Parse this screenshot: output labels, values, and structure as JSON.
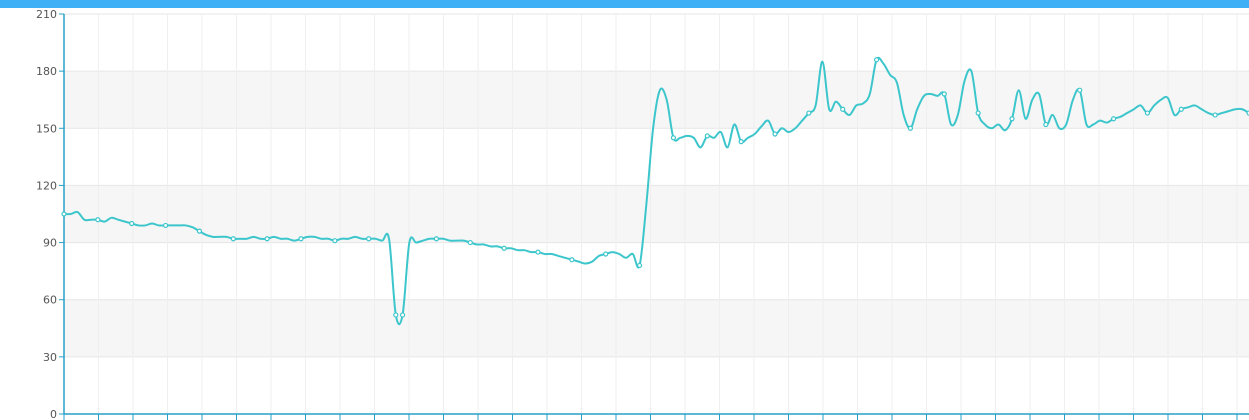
{
  "colors": {
    "top_bar": "#3fb0f5",
    "line": "#3cc6cc",
    "axis": "#2a9fc9",
    "band": "#f6f6f6",
    "grid": "#e6e6e6"
  },
  "chart_data": {
    "type": "line",
    "title": "",
    "xlabel": "",
    "ylabel": "",
    "ylim": [
      0,
      210
    ],
    "yticks": [
      0,
      30,
      60,
      90,
      120,
      150,
      180,
      210
    ],
    "ytick_labels": [
      "0",
      "30",
      "60",
      "90",
      "120",
      "150",
      "180",
      "210"
    ],
    "grid": true,
    "legend": "none",
    "x": [
      0,
      1,
      2,
      3,
      4,
      5,
      6,
      7,
      8,
      9,
      10,
      11,
      12,
      13,
      14,
      15,
      16,
      17,
      18,
      19,
      20,
      21,
      22,
      23,
      24,
      25,
      26,
      27,
      28,
      29,
      30,
      31,
      32,
      33,
      34,
      35,
      36,
      37,
      38,
      39,
      40,
      41,
      42,
      43,
      44,
      45,
      46,
      47,
      48,
      49,
      50,
      51,
      52,
      53,
      54,
      55,
      56,
      57,
      58,
      59,
      60,
      61,
      62,
      63,
      64,
      65,
      66,
      67,
      68,
      69,
      70,
      71,
      72,
      73,
      74,
      75,
      76,
      77,
      78,
      79,
      80,
      81,
      82,
      83,
      84,
      85,
      86,
      87,
      88,
      89,
      90,
      91,
      92,
      93,
      94,
      95,
      96,
      97,
      98,
      99,
      100,
      101,
      102,
      103,
      104,
      105,
      106,
      107,
      108,
      109,
      110,
      111,
      112,
      113,
      114,
      115,
      116,
      117,
      118,
      119,
      120,
      121,
      122,
      123,
      124,
      125,
      126,
      127,
      128,
      129,
      130,
      131,
      132,
      133,
      134,
      135,
      136,
      137,
      138,
      139,
      140,
      141,
      142,
      143,
      144,
      145,
      146,
      147,
      148,
      149,
      150,
      151,
      152,
      153,
      154,
      155,
      156,
      157,
      158,
      159,
      160,
      161,
      162,
      163,
      164,
      165,
      166,
      167,
      168,
      169,
      170,
      171,
      172,
      173,
      174,
      175
    ],
    "values": [
      105,
      105,
      106,
      102,
      102,
      102,
      101,
      103,
      102,
      101,
      100,
      99,
      99,
      100,
      99,
      99,
      99,
      99,
      99,
      98,
      96,
      94,
      93,
      93,
      93,
      92,
      92,
      92,
      93,
      92,
      92,
      93,
      92,
      92,
      91,
      92,
      93,
      93,
      92,
      92,
      91,
      92,
      92,
      93,
      92,
      92,
      92,
      91,
      92,
      52,
      52,
      90,
      90,
      91,
      92,
      92,
      92,
      91,
      91,
      91,
      90,
      89,
      89,
      88,
      88,
      87,
      87,
      86,
      86,
      85,
      85,
      84,
      84,
      83,
      82,
      81,
      80,
      79,
      80,
      83,
      84,
      85,
      84,
      82,
      84,
      78,
      110,
      150,
      170,
      165,
      145,
      145,
      146,
      145,
      140,
      146,
      145,
      148,
      140,
      152,
      143,
      145,
      147,
      151,
      154,
      147,
      150,
      148,
      150,
      154,
      158,
      162,
      185,
      160,
      164,
      160,
      157,
      162,
      163,
      168,
      186,
      184,
      178,
      174,
      157,
      150,
      160,
      167,
      168,
      167,
      168,
      152,
      157,
      175,
      180,
      158,
      152,
      150,
      152,
      149,
      155,
      170,
      155,
      165,
      168,
      152,
      157,
      150,
      152,
      165,
      170,
      152,
      152,
      154,
      153,
      155,
      156,
      158,
      160,
      162,
      158,
      162,
      165,
      166,
      157,
      160,
      161,
      162,
      160,
      158,
      157,
      158,
      159,
      160,
      160,
      158
    ]
  }
}
